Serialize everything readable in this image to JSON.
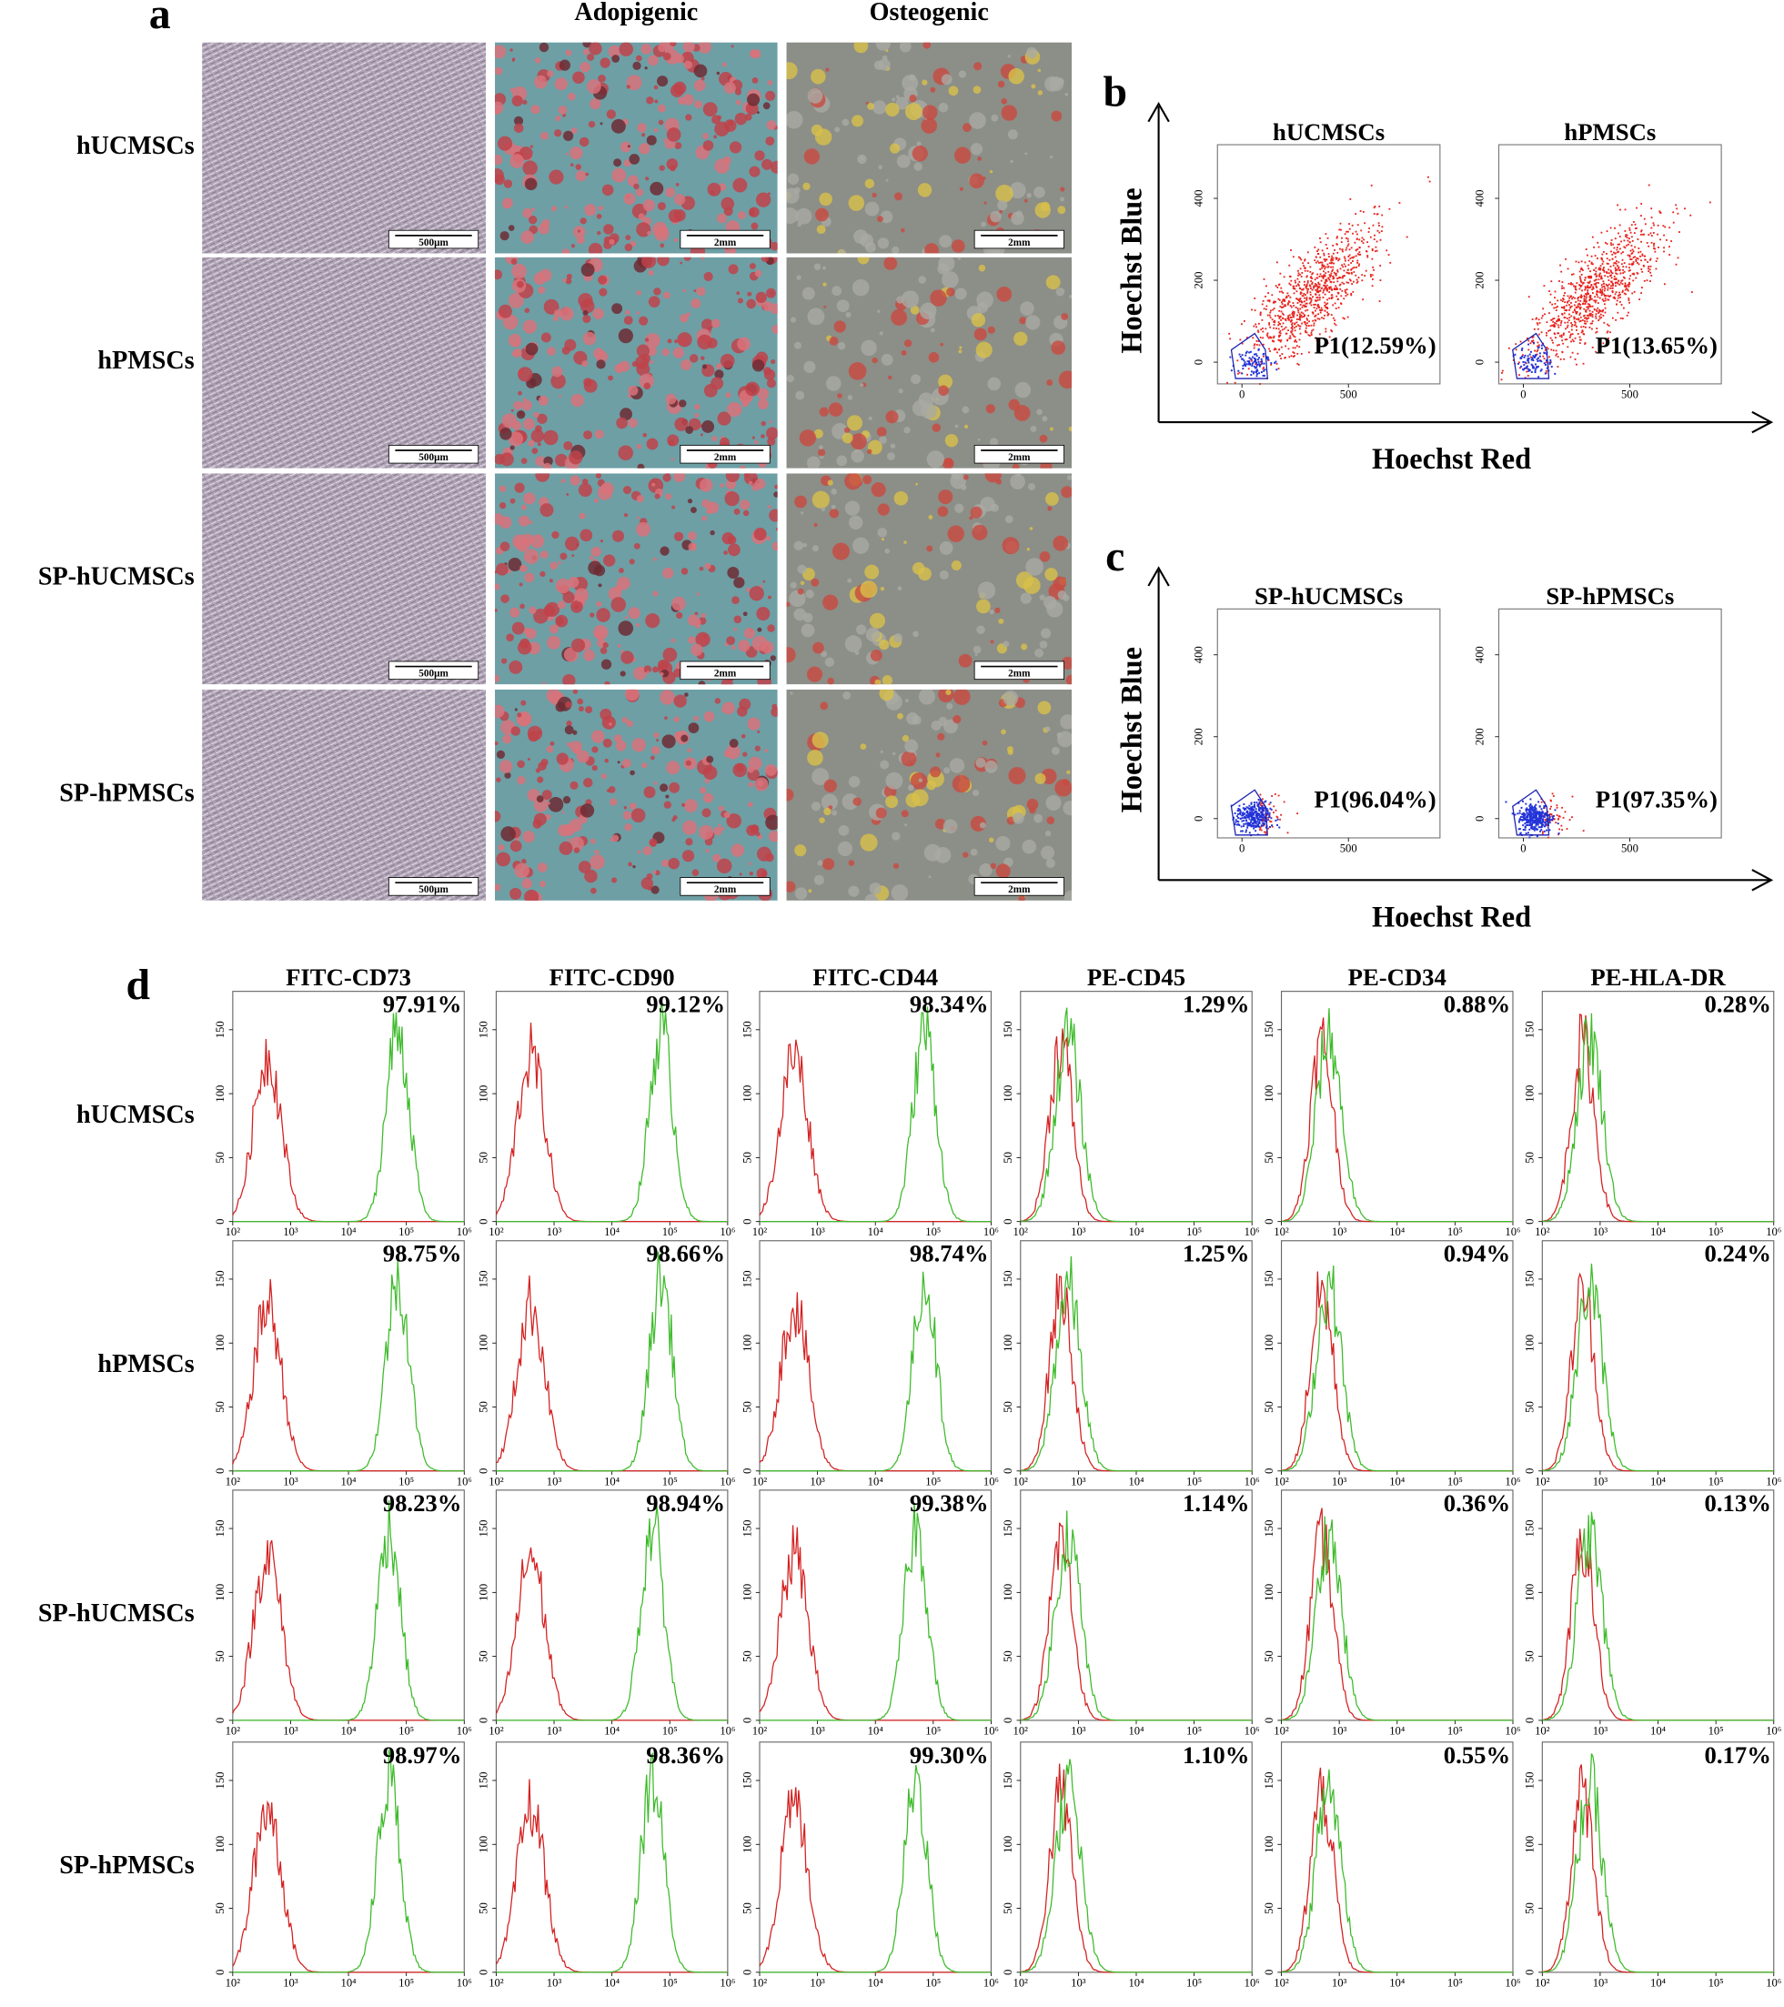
{
  "panel_a": {
    "label": "a",
    "column_headers": [
      "Adopigenic",
      "Osteogenic"
    ],
    "row_labels": [
      "hUCMSCs",
      "hPMSCs",
      "SP-hUCMSCs",
      "SP-hPMSCs"
    ],
    "scale_bars": [
      "500μm",
      "2mm",
      "2mm"
    ]
  },
  "panel_b": {
    "label": "b",
    "x_label": "Hoechst Red",
    "y_label": "Hoechst Blue",
    "xlim": [
      -115,
      930
    ],
    "ylim": [
      -53,
      531
    ],
    "xticks": [
      0,
      500
    ],
    "yticks": [
      0,
      200,
      400
    ],
    "plots": [
      {
        "title": "hUCMSCs",
        "gate": "P1(12.59%)"
      },
      {
        "title": "hPMSCs",
        "gate": "P1(13.65%)"
      }
    ]
  },
  "panel_c": {
    "label": "c",
    "x_label": "Hoechst Red",
    "y_label": "Hoechst Blue",
    "xlim": [
      -115,
      930
    ],
    "ylim": [
      -47,
      512
    ],
    "xticks": [
      0,
      500
    ],
    "yticks": [
      0,
      200,
      400
    ],
    "plots": [
      {
        "title": "SP-hUCMSCs",
        "gate": "P1(96.04%)"
      },
      {
        "title": "SP-hPMSCs",
        "gate": "P1(97.35%)"
      }
    ]
  },
  "panel_d": {
    "label": "d",
    "markers": [
      "FITC-CD73",
      "FITC-CD90",
      "FITC-CD44",
      "PE-CD45",
      "PE-CD34",
      "PE-HLA-DR"
    ],
    "row_labels": [
      "hUCMSCs",
      "hPMSCs",
      "SP-hUCMSCs",
      "SP-hPMSCs"
    ],
    "percentages": [
      [
        "97.91%",
        "99.12%",
        "98.34%",
        "1.29%",
        "0.88%",
        "0.28%"
      ],
      [
        "98.75%",
        "98.66%",
        "98.74%",
        "1.25%",
        "0.94%",
        "0.24%"
      ],
      [
        "98.23%",
        "98.94%",
        "99.38%",
        "1.14%",
        "0.36%",
        "0.13%"
      ],
      [
        "98.97%",
        "98.36%",
        "99.30%",
        "1.10%",
        "0.55%",
        "0.17%"
      ]
    ],
    "ylim": [
      0,
      180
    ],
    "yticks": [
      0,
      50,
      100,
      150
    ],
    "xlim": [
      2,
      6
    ],
    "xticks": [
      {
        "value": 2,
        "label": "10²"
      },
      {
        "value": 3,
        "label": "10³"
      },
      {
        "value": 4,
        "label": "10⁴"
      },
      {
        "value": 5,
        "label": "10⁵"
      },
      {
        "value": 6,
        "label": "10⁶"
      }
    ]
  }
}
